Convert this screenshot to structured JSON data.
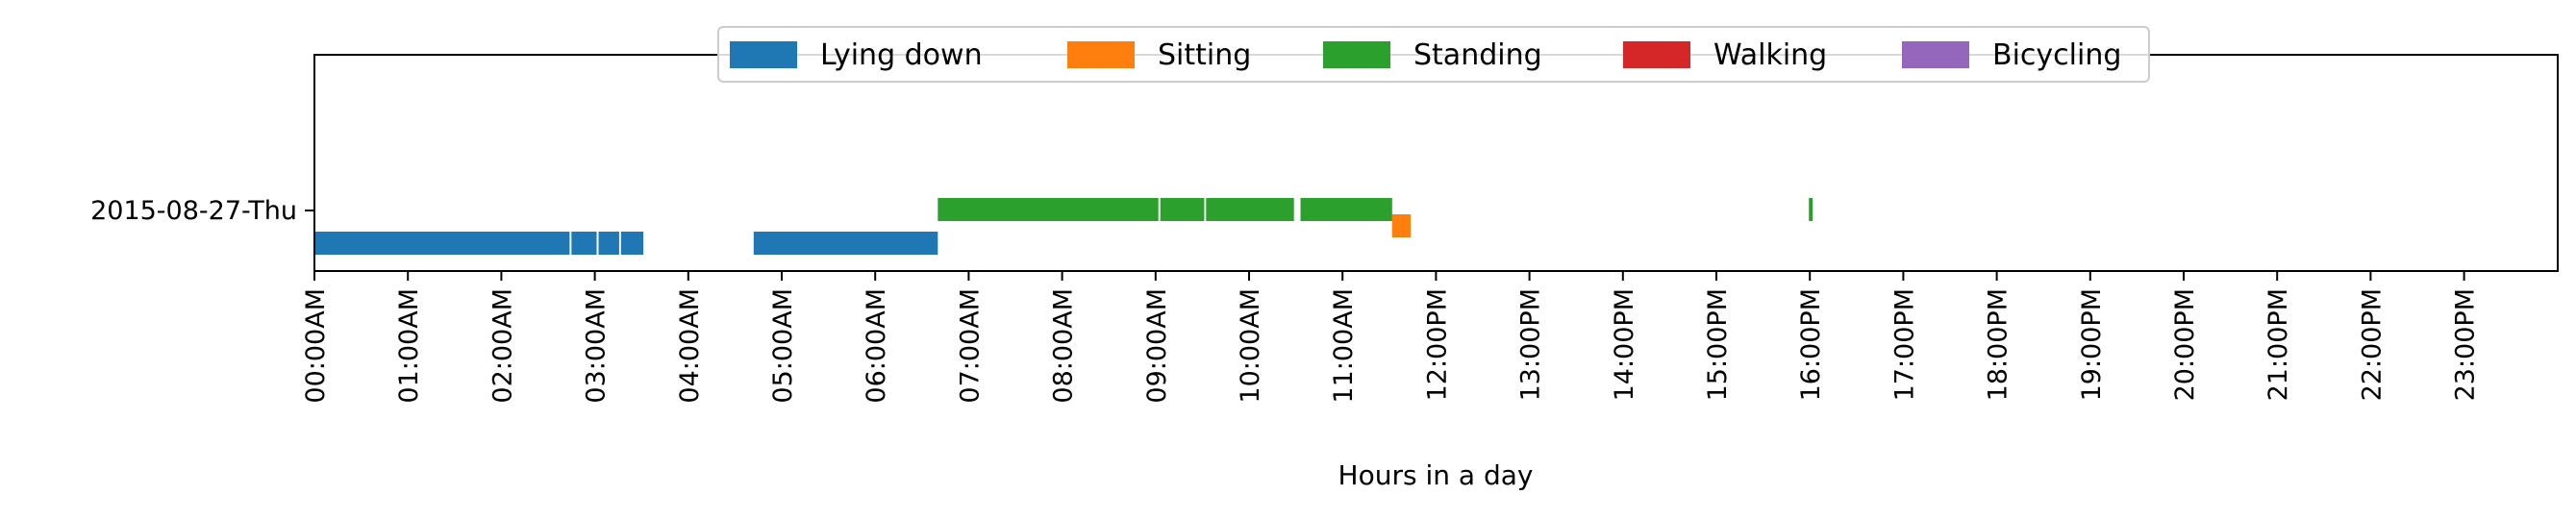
{
  "chart_data": {
    "type": "timeline",
    "title": "",
    "xlabel": "Hours in a day",
    "ylabel": "",
    "x_range_hours": [
      0,
      24
    ],
    "x_tick_labels": [
      "00:00AM",
      "01:00AM",
      "02:00AM",
      "03:00AM",
      "04:00AM",
      "05:00AM",
      "06:00AM",
      "07:00AM",
      "08:00AM",
      "09:00AM",
      "10:00AM",
      "11:00AM",
      "12:00PM",
      "13:00PM",
      "14:00PM",
      "15:00PM",
      "16:00PM",
      "17:00PM",
      "18:00PM",
      "19:00PM",
      "20:00PM",
      "21:00PM",
      "22:00PM",
      "23:00PM"
    ],
    "rows": [
      "2015-08-27-Thu"
    ],
    "legend_position": "top-center",
    "grid": false,
    "series": [
      {
        "name": "Lying down",
        "color": "#1f77b4",
        "segments": [
          [
            0.0,
            2.73
          ],
          [
            2.75,
            3.02
          ],
          [
            3.04,
            3.26
          ],
          [
            3.28,
            3.52
          ],
          [
            4.7,
            6.67
          ]
        ]
      },
      {
        "name": "Sitting",
        "color": "#ff7f0e",
        "segments": [
          [
            11.53,
            11.73
          ]
        ]
      },
      {
        "name": "Standing",
        "color": "#2ca02c",
        "segments": [
          [
            6.67,
            9.03
          ],
          [
            9.05,
            9.52
          ],
          [
            9.54,
            10.48
          ],
          [
            10.55,
            11.53
          ],
          [
            15.99,
            16.03
          ]
        ]
      },
      {
        "name": "Walking",
        "color": "#d62728",
        "segments": []
      },
      {
        "name": "Bicycling",
        "color": "#9467bd",
        "segments": []
      }
    ]
  }
}
